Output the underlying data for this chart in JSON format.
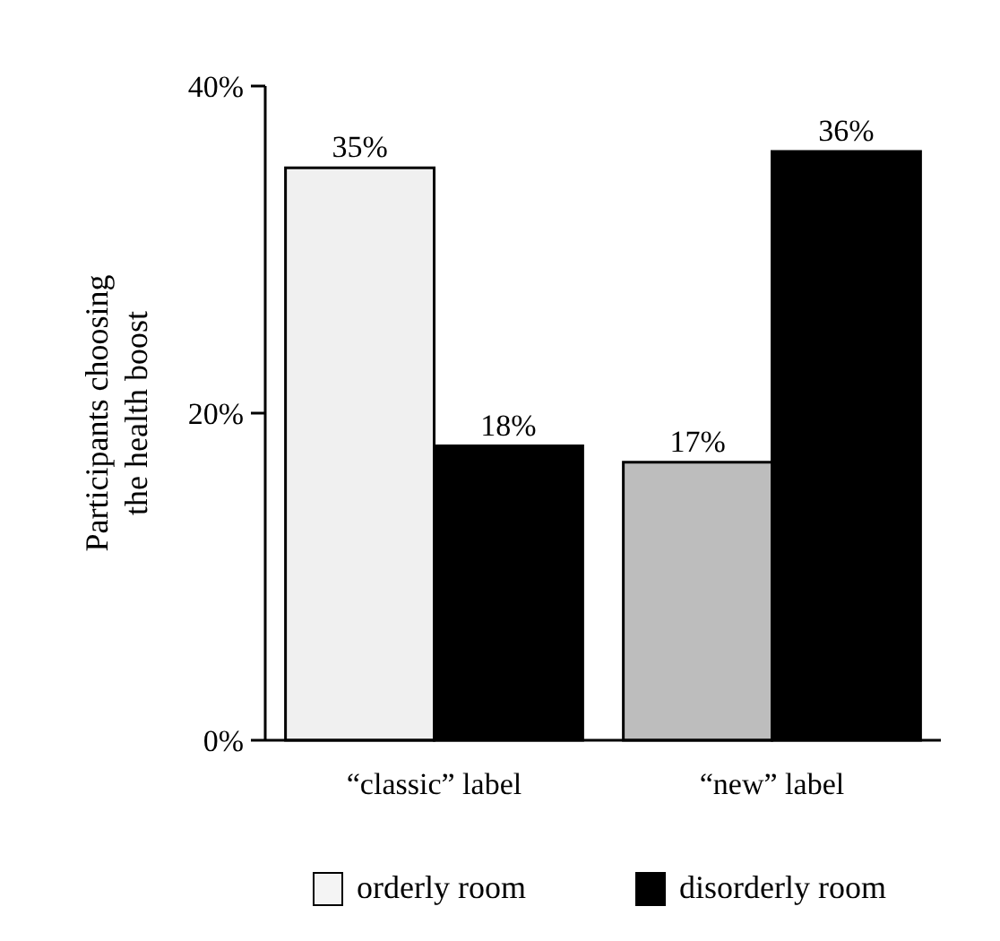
{
  "chart_data": {
    "type": "bar",
    "ylabel": "Participants choosing\nthe health boost",
    "categories": [
      "“classic” label",
      "“new” label"
    ],
    "series": [
      {
        "name": "orderly room",
        "color": "#f4f4f4",
        "colors": [
          "#f0f0f0",
          "#bdbdbd"
        ],
        "values": [
          35,
          17
        ],
        "value_labels": [
          "35%",
          "17%"
        ]
      },
      {
        "name": "disorderly room",
        "color": "#000000",
        "values": [
          18,
          36
        ],
        "value_labels": [
          "18%",
          "36%"
        ]
      }
    ],
    "ylim": [
      0,
      40
    ],
    "yticks": [
      {
        "value": 0,
        "label": "0%"
      },
      {
        "value": 20,
        "label": "20%"
      },
      {
        "value": 40,
        "label": "40%"
      }
    ],
    "grid": false,
    "legend": "bottom"
  }
}
